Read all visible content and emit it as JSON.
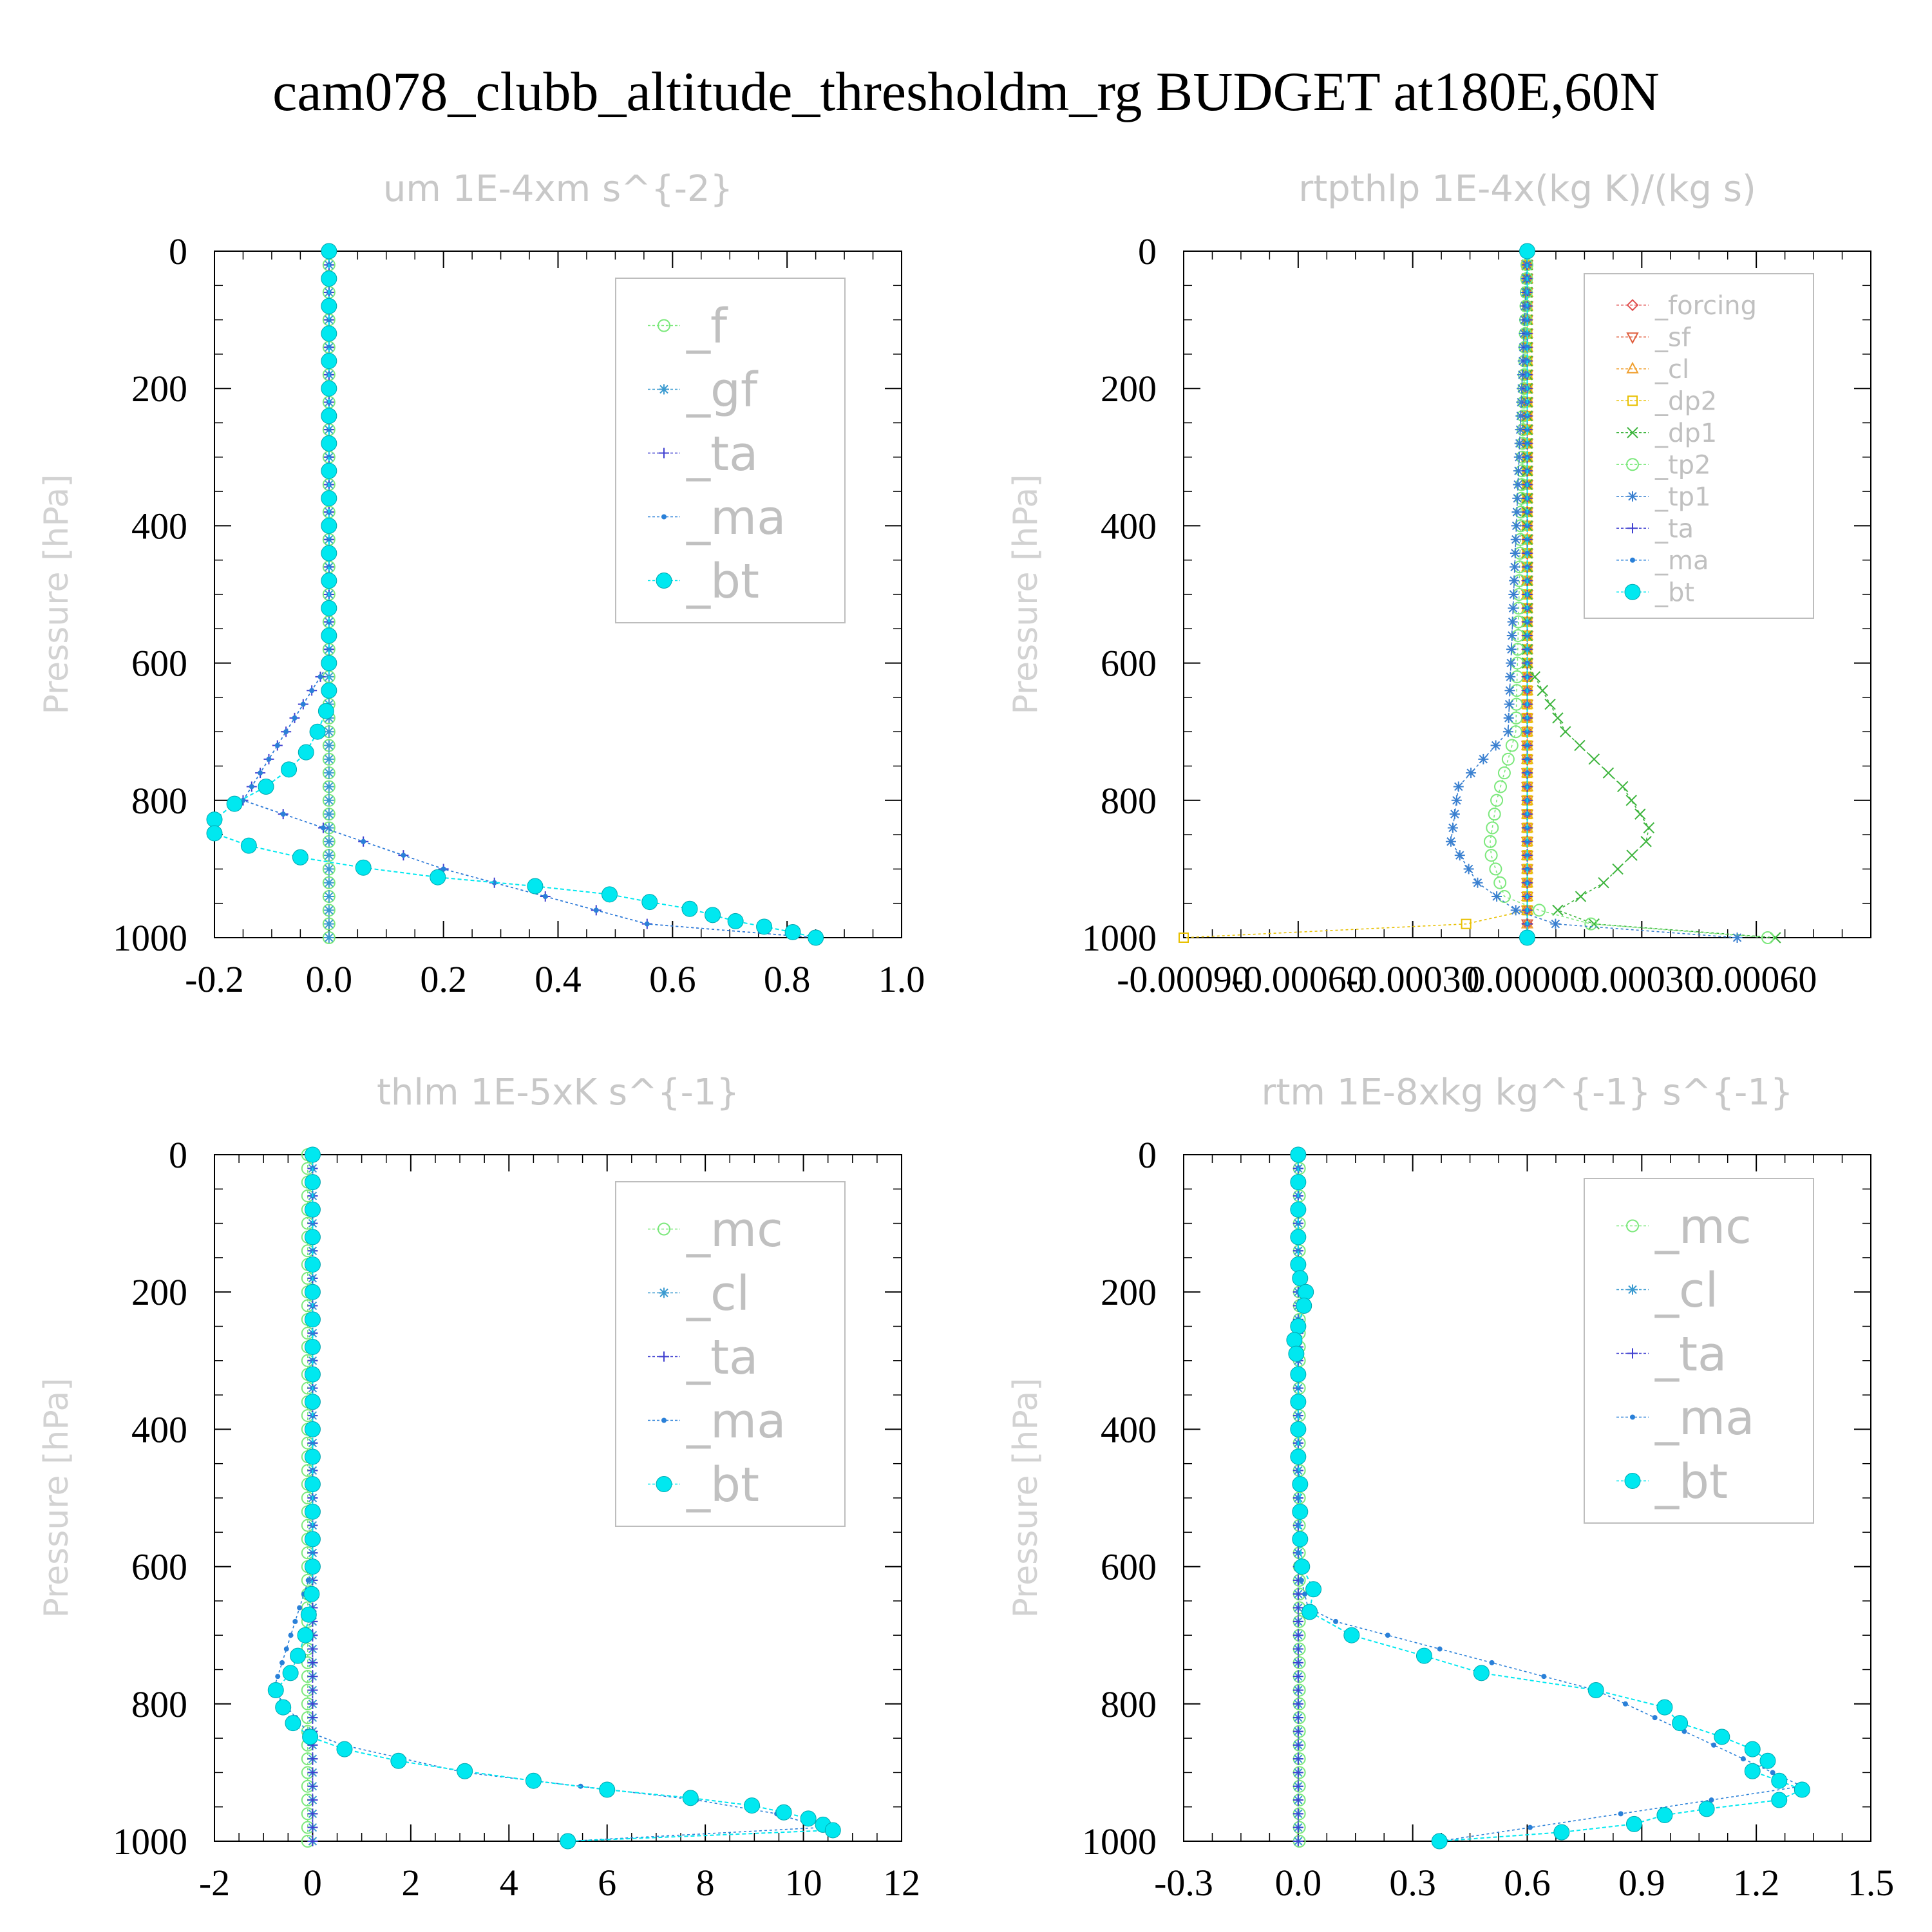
{
  "title": "cam078_clubb_altitude_thresholdm_rg  BUDGET at180E,60N",
  "chart_data": [
    {
      "type": "line",
      "title": "um   1E-4xm s^{-2}",
      "ylabel": "Pressure [hPa]",
      "y_inverted": true,
      "ylim": [
        0,
        1000
      ],
      "xlim": [
        -0.2,
        1.0
      ],
      "yticks": [
        "0",
        "200",
        "400",
        "600",
        "800",
        "1000"
      ],
      "xticks": [
        "-0.2",
        "0.0",
        "0.2",
        "0.4",
        "0.6",
        "0.8",
        "1.0"
      ],
      "legend_position": "top-right",
      "series": [
        {
          "name": "_f",
          "color": "#7ce87c",
          "marker": "circle",
          "pressure": [
            0,
            200,
            400,
            600,
            800,
            1000
          ],
          "values": [
            0,
            0,
            0,
            0,
            0,
            0
          ]
        },
        {
          "name": "_gf",
          "color": "#3a9ad0",
          "marker": "star",
          "pressure": [
            0,
            200,
            400,
            600,
            800,
            1000
          ],
          "values": [
            0,
            0,
            0,
            0,
            0,
            0
          ]
        },
        {
          "name": "_ta",
          "color": "#4040d0",
          "marker": "plus",
          "pressure": [
            0,
            600,
            800,
            900,
            990,
            1000
          ],
          "values": [
            0,
            0,
            -0.15,
            0.2,
            0.6,
            0.85
          ]
        },
        {
          "name": "_ma",
          "color": "#2a80d8",
          "marker": "dot",
          "pressure": [
            0,
            600,
            800,
            900,
            990,
            1000
          ],
          "values": [
            0,
            0,
            -0.15,
            0.2,
            0.6,
            0.85
          ]
        },
        {
          "name": "_bt",
          "color": "#00e8f0",
          "marker": "bigdot",
          "pressure": [
            0,
            40,
            80,
            120,
            160,
            200,
            240,
            280,
            320,
            360,
            400,
            440,
            480,
            520,
            560,
            600,
            640,
            670,
            700,
            730,
            755,
            780,
            805,
            828,
            848,
            866,
            883,
            898,
            912,
            925,
            937,
            948,
            958,
            967,
            976,
            984,
            992,
            1000
          ],
          "values": [
            0,
            0,
            0,
            0,
            0,
            0,
            0,
            0,
            0,
            0,
            0,
            0,
            0,
            0,
            0,
            0,
            0,
            -0.005,
            -0.02,
            -0.04,
            -0.07,
            -0.11,
            -0.165,
            -0.2,
            -0.2,
            -0.14,
            -0.05,
            0.06,
            0.19,
            0.36,
            0.49,
            0.56,
            0.63,
            0.67,
            0.71,
            0.76,
            0.81,
            0.85
          ]
        }
      ]
    },
    {
      "type": "line",
      "title": "rtpthlp   1E-4x(kg K)/(kg s)",
      "ylabel": "Pressure [hPa]",
      "y_inverted": true,
      "ylim": [
        0,
        1000
      ],
      "xlim": [
        -0.0009,
        0.0009
      ],
      "yticks": [
        "0",
        "200",
        "400",
        "600",
        "800",
        "1000"
      ],
      "xticks": [
        "-0.00090",
        "-0.00060",
        "-0.00030",
        "0.00000",
        "0.00030",
        "0.00060"
      ],
      "legend_position": "top-right",
      "series": [
        {
          "name": "_forcing",
          "color": "#e05050",
          "marker": "diamond",
          "pressure": [
            0,
            1000
          ],
          "values": [
            0,
            0
          ]
        },
        {
          "name": "_sf",
          "color": "#e06040",
          "marker": "tri-down",
          "pressure": [
            0,
            1000
          ],
          "values": [
            0,
            0
          ]
        },
        {
          "name": "_cl",
          "color": "#f0a030",
          "marker": "tri-up",
          "pressure": [
            0,
            1000
          ],
          "values": [
            0,
            0
          ]
        },
        {
          "name": "_dp2",
          "color": "#e8c000",
          "marker": "square",
          "pressure": [
            0,
            960,
            985,
            993,
            1000
          ],
          "values": [
            0,
            0,
            -0.0002,
            -0.0005,
            -0.0009
          ]
        },
        {
          "name": "_dp1",
          "color": "#3cb43c",
          "marker": "cross",
          "pressure": [
            0,
            600,
            700,
            780,
            850,
            920,
            970,
            990,
            1000
          ],
          "values": [
            0,
            0,
            0.0001,
            0.00025,
            0.00033,
            0.0002,
            5e-05,
            0.0003,
            0.00065
          ]
        },
        {
          "name": "_tp2",
          "color": "#7ce87c",
          "marker": "circle",
          "pressure": [
            0,
            700,
            800,
            870,
            940,
            975,
            990,
            1000
          ],
          "values": [
            0,
            -3e-05,
            -8e-05,
            -0.0001,
            -6e-05,
            0.0001,
            0.0003,
            0.00063
          ]
        },
        {
          "name": "_tp1",
          "color": "#3a80d0",
          "marker": "star",
          "pressure": [
            0,
            700,
            780,
            860,
            920,
            960,
            985,
            1000
          ],
          "values": [
            0,
            -5e-05,
            -0.00018,
            -0.0002,
            -0.00013,
            -3e-05,
            0.0001,
            0.00055
          ]
        },
        {
          "name": "_ta",
          "color": "#4040d0",
          "marker": "plus",
          "pressure": [
            0,
            1000
          ],
          "values": [
            0,
            0
          ]
        },
        {
          "name": "_ma",
          "color": "#2a80d8",
          "marker": "dot",
          "pressure": [
            0,
            1000
          ],
          "values": [
            0,
            0
          ]
        },
        {
          "name": "_bt",
          "color": "#00e8f0",
          "marker": "bigdot",
          "pressure": [
            0,
            1000
          ],
          "values": [
            0,
            0
          ]
        }
      ]
    },
    {
      "type": "line",
      "title": "thlm   1E-5xK s^{-1}",
      "ylabel": "Pressure [hPa]",
      "y_inverted": true,
      "ylim": [
        0,
        1000
      ],
      "xlim": [
        -2,
        12
      ],
      "yticks": [
        "0",
        "200",
        "400",
        "600",
        "800",
        "1000"
      ],
      "xticks": [
        "-2",
        "0",
        "2",
        "4",
        "6",
        "8",
        "10",
        "12"
      ],
      "legend_position": "top-right",
      "series": [
        {
          "name": "_mc",
          "color": "#7ce87c",
          "marker": "circle",
          "pressure": [
            0,
            200,
            400,
            600,
            800,
            1000
          ],
          "values": [
            -0.1,
            -0.1,
            -0.1,
            -0.1,
            -0.1,
            -0.1
          ]
        },
        {
          "name": "_cl",
          "color": "#3a9ad0",
          "marker": "star",
          "pressure": [
            0,
            200,
            400,
            600,
            800,
            1000
          ],
          "values": [
            0,
            0,
            0,
            0,
            0,
            0
          ]
        },
        {
          "name": "_ta",
          "color": "#4040d0",
          "marker": "plus",
          "pressure": [
            0,
            1000
          ],
          "values": [
            0,
            0
          ]
        },
        {
          "name": "_ma",
          "color": "#2a80d8",
          "marker": "dot",
          "pressure": [
            0,
            600,
            780,
            850,
            900,
            950,
            985,
            1000
          ],
          "values": [
            0,
            0,
            -0.8,
            0,
            3.1,
            9,
            10.6,
            5.2
          ]
        },
        {
          "name": "_bt",
          "color": "#00e8f0",
          "marker": "bigdot",
          "pressure": [
            0,
            40,
            80,
            120,
            160,
            200,
            240,
            280,
            320,
            360,
            400,
            440,
            480,
            520,
            560,
            600,
            640,
            670,
            700,
            730,
            755,
            780,
            805,
            828,
            848,
            866,
            883,
            898,
            912,
            925,
            937,
            948,
            958,
            967,
            976,
            984,
            1000
          ],
          "values": [
            0,
            0,
            0,
            0,
            0,
            0,
            0,
            0,
            0,
            0,
            0,
            0,
            0,
            0,
            0,
            0,
            -0.02,
            -0.08,
            -0.15,
            -0.3,
            -0.45,
            -0.75,
            -0.6,
            -0.4,
            -0.05,
            0.65,
            1.75,
            3.1,
            4.5,
            6.0,
            7.7,
            8.95,
            9.6,
            10.1,
            10.4,
            10.6,
            5.2
          ]
        }
      ]
    },
    {
      "type": "line",
      "title": "rtm   1E-8xkg kg^{-1} s^{-1}",
      "ylabel": "Pressure [hPa]",
      "y_inverted": true,
      "ylim": [
        0,
        1000
      ],
      "xlim": [
        -0.3,
        1.5
      ],
      "yticks": [
        "0",
        "200",
        "400",
        "600",
        "800",
        "1000"
      ],
      "xticks": [
        "-0.3",
        "0.0",
        "0.3",
        "0.6",
        "0.9",
        "1.2",
        "1.5"
      ],
      "legend_position": "top-right",
      "series": [
        {
          "name": "_mc",
          "color": "#7ce87c",
          "marker": "circle",
          "pressure": [
            0,
            200,
            400,
            600,
            800,
            1000
          ],
          "values": [
            0.003,
            0.003,
            0.003,
            0.003,
            0.003,
            0.003
          ]
        },
        {
          "name": "_cl",
          "color": "#3a9ad0",
          "marker": "star",
          "pressure": [
            0,
            200,
            400,
            600,
            800,
            1000
          ],
          "values": [
            0,
            0,
            0,
            0,
            0,
            0
          ]
        },
        {
          "name": "_ta",
          "color": "#4040d0",
          "marker": "plus",
          "pressure": [
            0,
            1000
          ],
          "values": [
            0,
            0
          ]
        },
        {
          "name": "_ma",
          "color": "#2a80d8",
          "marker": "dot",
          "pressure": [
            0,
            600,
            670,
            780,
            920,
            1000
          ],
          "values": [
            0,
            0,
            0.03,
            0.78,
            1.32,
            0.37
          ]
        },
        {
          "name": "_bt",
          "color": "#00e8f0",
          "marker": "bigdot",
          "pressure": [
            0,
            40,
            80,
            120,
            160,
            180,
            200,
            220,
            250,
            270,
            290,
            320,
            360,
            400,
            440,
            480,
            520,
            560,
            600,
            633,
            666,
            700,
            730,
            755,
            780,
            805,
            828,
            848,
            866,
            883,
            898,
            912,
            925,
            940,
            953,
            962,
            975,
            987,
            1000
          ],
          "values": [
            0,
            0,
            0,
            0,
            0,
            0.005,
            0.02,
            0.015,
            0,
            -0.01,
            -0.005,
            0,
            0,
            0,
            0,
            0.005,
            0.005,
            0.005,
            0.01,
            0.04,
            0.03,
            0.14,
            0.33,
            0.48,
            0.78,
            0.96,
            1.0,
            1.11,
            1.19,
            1.23,
            1.19,
            1.26,
            1.32,
            1.26,
            1.07,
            0.96,
            0.88,
            0.69,
            0.37
          ]
        }
      ]
    }
  ]
}
